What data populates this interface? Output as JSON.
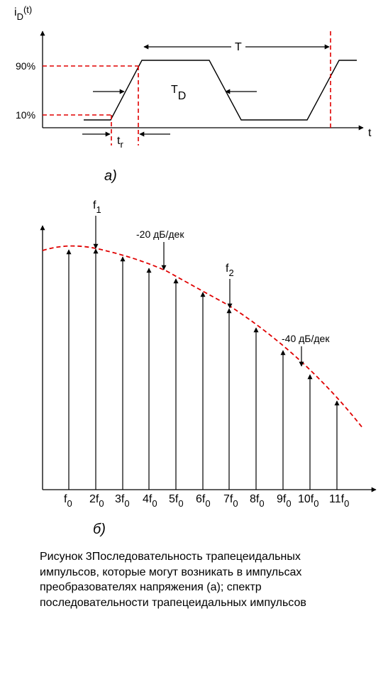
{
  "panel_a": {
    "y_label": "i",
    "y_label_sub": "D",
    "y_label_tail": "(t)",
    "x_label": "t",
    "level_high": "90%",
    "level_low": "10%",
    "period_label": "T",
    "duration_label": "T",
    "duration_sub": "D",
    "rise_label": "t",
    "rise_sub": "r",
    "caption": "а)"
  },
  "panel_b": {
    "caption": "б)",
    "f1_label": "f",
    "f1_sub": "1",
    "f2_label": "f",
    "f2_sub": "2",
    "slope1_label": "-20 дБ/дек",
    "slope2_label": "-40 дБ/дек",
    "harmonics": [
      {
        "coef": "",
        "sub": "0"
      },
      {
        "coef": "2",
        "sub": "0"
      },
      {
        "coef": "3",
        "sub": "0"
      },
      {
        "coef": "4",
        "sub": "0"
      },
      {
        "coef": "5",
        "sub": "0"
      },
      {
        "coef": "6",
        "sub": "0"
      },
      {
        "coef": "7",
        "sub": "0"
      },
      {
        "coef": "8",
        "sub": "0"
      },
      {
        "coef": "9",
        "sub": "0"
      },
      {
        "coef": "10",
        "sub": "0"
      },
      {
        "coef": "11",
        "sub": "0"
      }
    ],
    "harmonic_symbol": "f"
  },
  "caption": {
    "lines": [
      "Рисунок  3Последовательность трапецеидальных",
      "импульсов, которые могут возникать в импульсах",
      "преобразователях напряжения  (а); спектр",
      "последовательности трапецеидальных импульсов"
    ]
  },
  "colors": {
    "axis": "#000000",
    "guide": "#e00000"
  }
}
